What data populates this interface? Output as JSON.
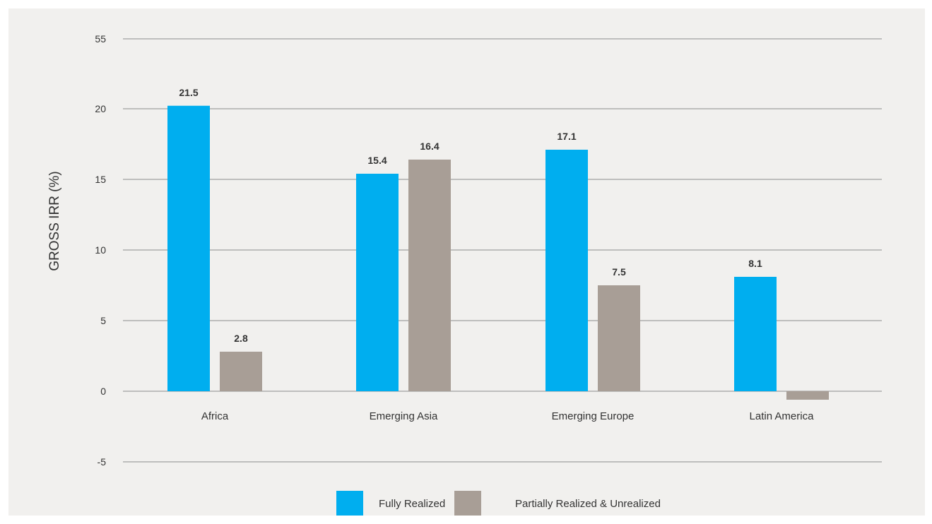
{
  "chart_data": {
    "type": "bar",
    "ylabel": "GROSS IRR (%)",
    "categories": [
      "Africa",
      "Emerging Asia",
      "Emerging Europe",
      "Latin America"
    ],
    "yticks": [
      "-5",
      "0",
      "5",
      "10",
      "15",
      "20",
      "55"
    ],
    "ytick_values": [
      -5,
      0,
      5,
      10,
      15,
      20,
      55
    ],
    "series": [
      {
        "name": "Fully Realized",
        "color": "#00aeef",
        "values": [
          21.5,
          15.4,
          17.1,
          8.1
        ],
        "labels": [
          "21.5",
          "15.4",
          "17.1",
          "8.1"
        ]
      },
      {
        "name": "Partially Realized & Unrealized",
        "color": "#a89e96",
        "values": [
          2.8,
          16.4,
          7.5,
          -0.6
        ],
        "labels": [
          "2.8",
          "16.4",
          "7.5",
          ""
        ]
      }
    ],
    "grid": true,
    "legend_position": "bottom-center"
  }
}
